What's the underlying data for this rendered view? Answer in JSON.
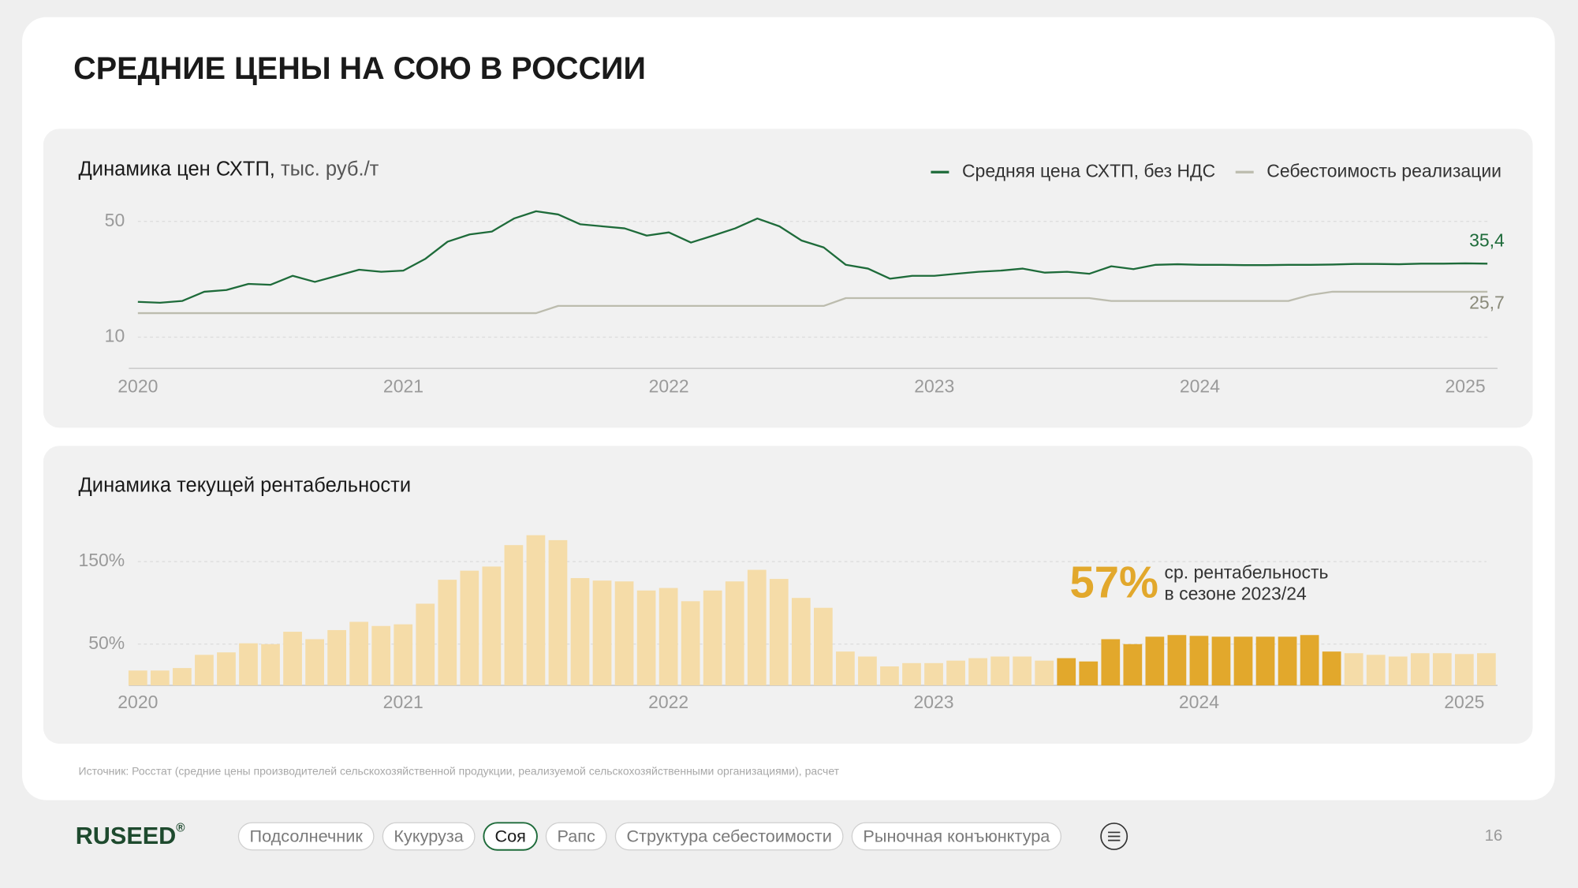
{
  "title": "СРЕДНИЕ ЦЕНЫ НА СОЮ В РОССИИ",
  "chart_data": [
    {
      "type": "line",
      "title": "Динамика цен СХТП,",
      "unit": "тыс. руб./т",
      "categories": [
        "2020",
        null,
        null,
        null,
        null,
        null,
        null,
        null,
        null,
        null,
        null,
        null,
        "2021",
        null,
        null,
        null,
        null,
        null,
        null,
        null,
        null,
        null,
        null,
        null,
        "2022",
        null,
        null,
        null,
        null,
        null,
        null,
        null,
        null,
        null,
        null,
        null,
        "2023",
        null,
        null,
        null,
        null,
        null,
        null,
        null,
        null,
        null,
        null,
        null,
        "2024",
        null,
        null,
        null,
        null,
        null,
        null,
        null,
        null,
        null,
        null,
        null,
        "2025",
        null
      ],
      "ylim": [
        0,
        55
      ],
      "yticks": [
        50,
        10
      ],
      "grid": true,
      "legend": "top-right",
      "series": [
        {
          "name": "Средняя цена СХТП, без НДС",
          "color": "#1e6b3a",
          "values": [
            22.2,
            21.9,
            22.5,
            25.7,
            26.3,
            28.4,
            28.1,
            31.2,
            29.1,
            31.2,
            33.3,
            32.6,
            33,
            37.1,
            43,
            45.5,
            46.5,
            51,
            53.5,
            52.4,
            49,
            48.3,
            47.6,
            45.1,
            46.2,
            42.7,
            45.1,
            47.6,
            51,
            48.3,
            43.4,
            41,
            35,
            33.7,
            30.2,
            31.2,
            31.2,
            31.9,
            32.6,
            33,
            33.7,
            32.3,
            32.6,
            31.9,
            34.5,
            33.5,
            35,
            35.2,
            35,
            35,
            34.9,
            34.9,
            35,
            35,
            35.1,
            35.3,
            35.3,
            35.2,
            35.4,
            35.4,
            35.5,
            35.4
          ],
          "value_labels": [
            null,
            null,
            null,
            null,
            null,
            null,
            null,
            null,
            null,
            null,
            null,
            null,
            null,
            null,
            null,
            null,
            null,
            null,
            null,
            null,
            null,
            null,
            null,
            null,
            null,
            null,
            null,
            null,
            null,
            null,
            null,
            null,
            null,
            null,
            null,
            null,
            null,
            null,
            null,
            null,
            null,
            null,
            null,
            null,
            null,
            null,
            null,
            null,
            null,
            null,
            null,
            null,
            null,
            null,
            null,
            null,
            null,
            null,
            null,
            null,
            null,
            "35,4"
          ]
        },
        {
          "name": "Себестоимость реализации",
          "color": "#bcbcae",
          "values": [
            18.3,
            18.3,
            18.3,
            18.3,
            18.3,
            18.3,
            18.3,
            18.3,
            18.3,
            18.3,
            18.3,
            18.3,
            18.3,
            18.3,
            18.3,
            18.3,
            18.3,
            18.3,
            18.3,
            20.8,
            20.8,
            20.8,
            20.8,
            20.8,
            20.8,
            20.8,
            20.8,
            20.8,
            20.8,
            20.8,
            20.8,
            20.8,
            23.5,
            23.5,
            23.5,
            23.5,
            23.5,
            23.5,
            23.5,
            23.5,
            23.5,
            23.5,
            23.5,
            23.5,
            22.5,
            22.5,
            22.5,
            22.5,
            22.5,
            22.5,
            22.5,
            22.5,
            22.5,
            24.6,
            25.7,
            25.7,
            25.7,
            25.7,
            25.7,
            25.7,
            25.7,
            25.7
          ],
          "value_labels": [
            null,
            null,
            null,
            null,
            null,
            null,
            null,
            null,
            null,
            null,
            null,
            null,
            null,
            null,
            null,
            null,
            null,
            null,
            null,
            null,
            null,
            null,
            null,
            null,
            null,
            null,
            null,
            null,
            null,
            null,
            null,
            null,
            null,
            null,
            null,
            null,
            null,
            null,
            null,
            null,
            null,
            null,
            null,
            null,
            null,
            null,
            null,
            null,
            null,
            null,
            null,
            null,
            null,
            null,
            null,
            null,
            null,
            null,
            null,
            null,
            null,
            "25,7"
          ]
        }
      ]
    },
    {
      "type": "bar",
      "title": "Динамика текущей рентабельности",
      "categories": [
        "2020",
        null,
        null,
        null,
        null,
        null,
        null,
        null,
        null,
        null,
        null,
        null,
        "2021",
        null,
        null,
        null,
        null,
        null,
        null,
        null,
        null,
        null,
        null,
        null,
        "2022",
        null,
        null,
        null,
        null,
        null,
        null,
        null,
        null,
        null,
        null,
        null,
        "2023",
        null,
        null,
        null,
        null,
        null,
        null,
        null,
        null,
        null,
        null,
        null,
        "2024",
        null,
        null,
        null,
        null,
        null,
        null,
        null,
        null,
        null,
        null,
        null,
        "2025",
        null
      ],
      "ylim": [
        0,
        200
      ],
      "yticks": [
        {
          "value": 150,
          "label": "150%"
        },
        {
          "value": 50,
          "label": "50%"
        }
      ],
      "grid": true,
      "values": [
        18,
        18,
        21,
        37,
        40,
        51,
        50,
        65,
        56,
        67,
        77,
        72,
        74,
        99,
        128,
        139,
        144,
        170,
        182,
        176,
        130,
        127,
        126,
        115,
        118,
        102,
        115,
        126,
        140,
        129,
        106,
        94,
        41,
        35,
        23,
        27,
        27,
        30,
        33,
        35,
        35,
        30,
        33,
        29,
        56,
        50,
        59,
        61,
        60,
        59,
        59,
        59,
        59,
        61,
        41,
        39,
        37,
        35,
        39,
        39,
        38,
        39
      ],
      "colors": [
        "#f5dca8",
        "#f5dca8",
        "#f5dca8",
        "#f5dca8",
        "#f5dca8",
        "#f5dca8",
        "#f5dca8",
        "#f5dca8",
        "#f5dca8",
        "#f5dca8",
        "#f5dca8",
        "#f5dca8",
        "#f5dca8",
        "#f5dca8",
        "#f5dca8",
        "#f5dca8",
        "#f5dca8",
        "#f5dca8",
        "#f5dca8",
        "#f5dca8",
        "#f5dca8",
        "#f5dca8",
        "#f5dca8",
        "#f5dca8",
        "#f5dca8",
        "#f5dca8",
        "#f5dca8",
        "#f5dca8",
        "#f5dca8",
        "#f5dca8",
        "#f5dca8",
        "#f5dca8",
        "#f5dca8",
        "#f5dca8",
        "#f5dca8",
        "#f5dca8",
        "#f5dca8",
        "#f5dca8",
        "#f5dca8",
        "#f5dca8",
        "#f5dca8",
        "#f5dca8",
        "#e2a82c",
        "#e2a82c",
        "#e2a82c",
        "#e2a82c",
        "#e2a82c",
        "#e2a82c",
        "#e2a82c",
        "#e2a82c",
        "#e2a82c",
        "#e2a82c",
        "#e2a82c",
        "#e2a82c",
        "#e2a82c",
        "#f5dca8",
        "#f5dca8",
        "#f5dca8",
        "#f5dca8",
        "#f5dca8",
        "#f5dca8",
        "#f5dca8"
      ],
      "annotation": {
        "value": "57%",
        "lines": [
          "ср. рентабельность",
          "в сезоне 2023/24"
        ],
        "color": "#e2a82c"
      }
    }
  ],
  "source": "Источник: Росстат (средние цены производителей сельскохозяйственной продукции, реализуемой сельскохозяйственными организациями), расчет",
  "footer": {
    "logo": "RUSEED",
    "logo_mark": "®",
    "nav": [
      "Подсолнечник",
      "Кукуруза",
      "Соя",
      "Рапс",
      "Структура себестоимости",
      "Рыночная конъюнктура"
    ],
    "active": 2,
    "page": "16"
  }
}
